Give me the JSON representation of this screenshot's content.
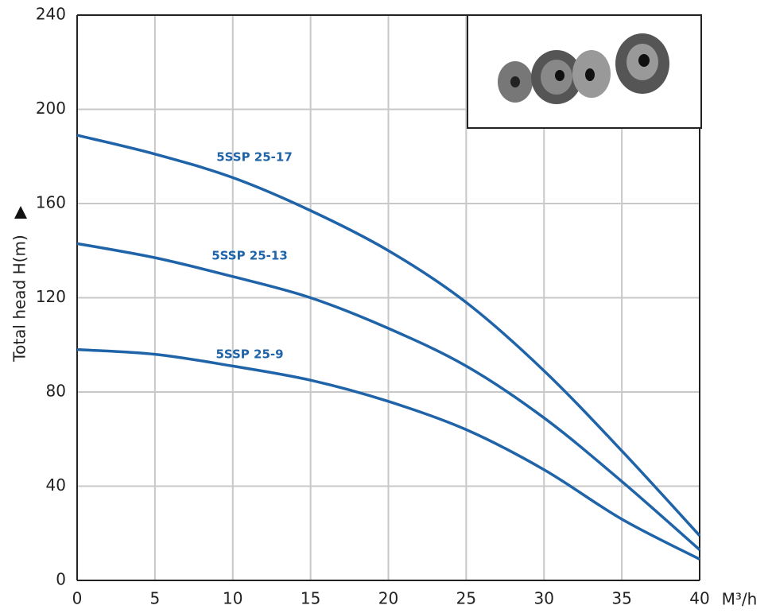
{
  "chart_data": {
    "type": "line",
    "x": [
      0,
      5,
      10,
      15,
      20,
      25,
      30,
      35,
      40
    ],
    "series": [
      {
        "name": "5SSP 25-17",
        "color": "#1f63a8",
        "values": [
          189,
          181,
          171,
          157,
          140,
          118,
          89,
          55,
          19
        ]
      },
      {
        "name": "5SSP 25-13",
        "color": "#1f63a8",
        "values": [
          143,
          137,
          129,
          120,
          107,
          91,
          69,
          42,
          13
        ]
      },
      {
        "name": "5SSP 25-9",
        "color": "#1f63a8",
        "values": [
          98,
          96,
          91,
          85,
          76,
          64,
          47,
          26,
          9
        ]
      }
    ],
    "xlabel": "M³/h",
    "ylabel": "Total head H(m)",
    "xlim": [
      0,
      40
    ],
    "xticks": [
      0,
      5,
      10,
      15,
      20,
      25,
      30,
      35,
      40
    ],
    "ylim": [
      0,
      240
    ],
    "yticks": [
      0,
      40,
      80,
      120,
      160,
      200,
      240
    ],
    "grid": true
  }
}
